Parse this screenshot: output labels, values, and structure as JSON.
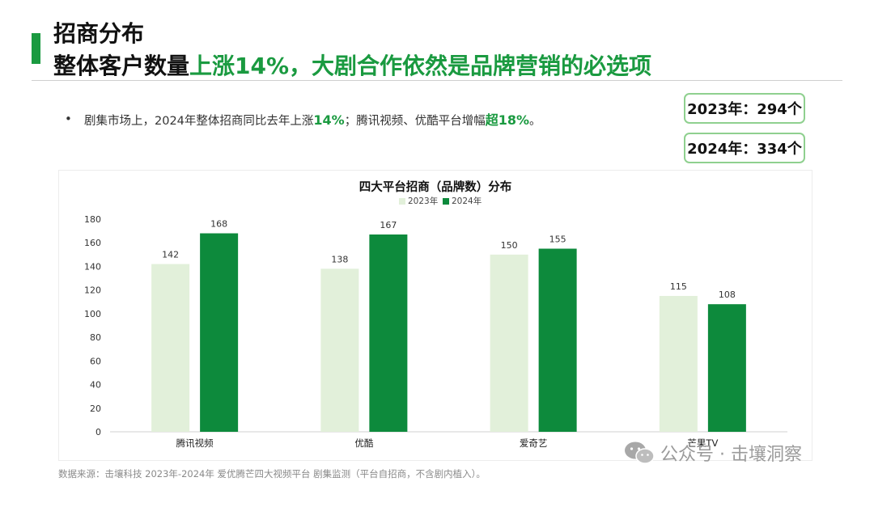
{
  "header": {
    "title_line1": "招商分布",
    "title_line2_prefix": "整体客户数量",
    "title_line2_highlight": "上涨14%，大剧合作依然是品牌营销的必选项"
  },
  "bullet": {
    "marker": "•",
    "text_part1": "剧集市场上，2024年整体招商同比去年上涨",
    "highlight1": "14%",
    "text_part2": "；腾讯视频、优酷平台增幅",
    "highlight2": "超18%",
    "text_part3": "。"
  },
  "stats": {
    "year2023": "2023年：294个",
    "year2024": "2024年：334个"
  },
  "colors": {
    "accent": "#1a9a40",
    "series_2023": "#e2f0da",
    "series_2024": "#0d8a3c",
    "box_border": "#8fd08f"
  },
  "chart_data": {
    "type": "bar",
    "title": "四大平台招商（品牌数）分布",
    "categories": [
      "腾讯视频",
      "优酷",
      "爱奇艺",
      "芒果TV"
    ],
    "series": [
      {
        "name": "2023年",
        "values": [
          142,
          138,
          150,
          115
        ]
      },
      {
        "name": "2024年",
        "values": [
          168,
          167,
          155,
          108
        ]
      }
    ],
    "ylim": [
      0,
      180
    ],
    "yticks": [
      0,
      20,
      40,
      60,
      80,
      100,
      120,
      140,
      160,
      180
    ],
    "xlabel": "",
    "ylabel": "",
    "grid": false,
    "legend": "top-center",
    "data_labels": true
  },
  "footnote": "数据来源：击壤科技 2023年-2024年 爱优腾芒四大视频平台 剧集监测（平台自招商，不含剧内植入）。",
  "watermark": {
    "icon": "wechat-icon",
    "text": "公众号 · 击壤洞察"
  }
}
